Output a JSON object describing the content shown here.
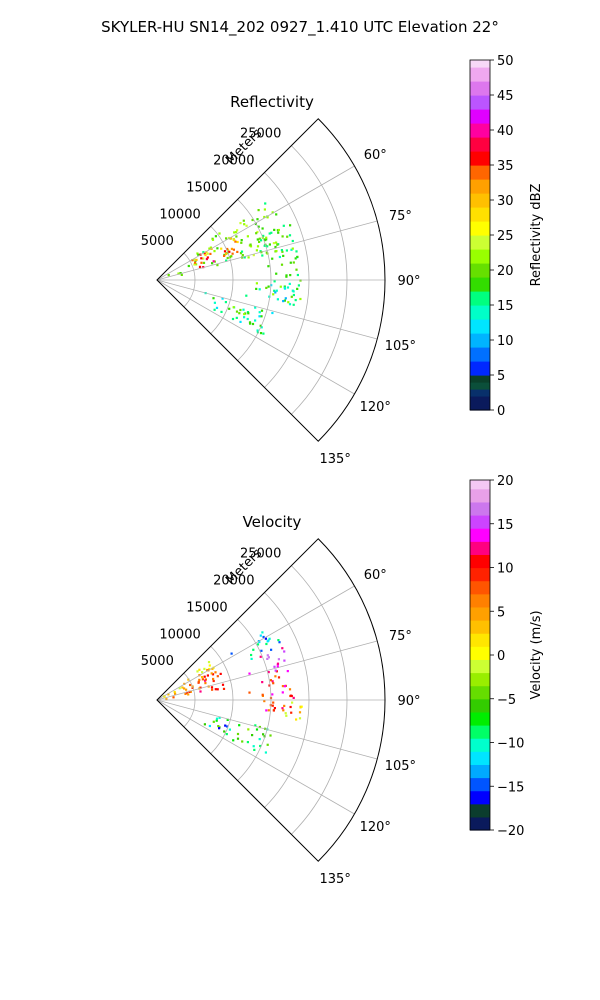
{
  "suptitle": "SKYLER-HU  SN14_202  0927_1.410 UTC Elevation 22°",
  "chart_data": [
    {
      "type": "heatmap",
      "projection": "polar-sector",
      "title": "Reflectivity",
      "radial_label": "Meters",
      "r_ticks": [
        "5000",
        "10000",
        "15000",
        "20000",
        "25000"
      ],
      "r_tick_values": [
        5000,
        10000,
        15000,
        20000,
        25000
      ],
      "theta_ticks": [
        "60°",
        "75°",
        "90°",
        "105°",
        "120°",
        "135°"
      ],
      "theta_tick_values": [
        60,
        75,
        90,
        105,
        120,
        135
      ],
      "theta_range": [
        45,
        135
      ],
      "r_range": [
        0,
        30000
      ],
      "grid": true,
      "colorbar": {
        "label": "Reflectivity dBZ",
        "range": [
          0,
          50
        ],
        "ticks": [
          "0",
          "5",
          "10",
          "15",
          "20",
          "25",
          "30",
          "35",
          "40",
          "45",
          "50"
        ],
        "tick_values": [
          0,
          5,
          10,
          15,
          20,
          25,
          30,
          35,
          40,
          45,
          50
        ],
        "placement": "right"
      },
      "echo_regions": [
        {
          "theta": [
            52,
            76
          ],
          "r": [
            0,
            18000
          ],
          "value": 20
        },
        {
          "theta": [
            58,
            70
          ],
          "r": [
            4000,
            12000
          ],
          "value": 32
        },
        {
          "theta": [
            62,
            74
          ],
          "r": [
            5500,
            8000
          ],
          "value": 38
        },
        {
          "theta": [
            66,
            100
          ],
          "r": [
            12000,
            19000
          ],
          "value": 18
        },
        {
          "theta": [
            92,
            100
          ],
          "r": [
            11000,
            18000
          ],
          "value": 12
        },
        {
          "theta": [
            104,
            118
          ],
          "r": [
            6000,
            16000
          ],
          "value": 14
        },
        {
          "theta": [
            108,
            114
          ],
          "r": [
            8000,
            13000
          ],
          "value": 22
        }
      ]
    },
    {
      "type": "heatmap",
      "projection": "polar-sector",
      "title": "Velocity",
      "radial_label": "Meters",
      "r_ticks": [
        "5000",
        "10000",
        "15000",
        "20000",
        "25000"
      ],
      "r_tick_values": [
        5000,
        10000,
        15000,
        20000,
        25000
      ],
      "theta_ticks": [
        "60°",
        "75°",
        "90°",
        "105°",
        "120°",
        "135°"
      ],
      "theta_tick_values": [
        60,
        75,
        90,
        105,
        120,
        135
      ],
      "theta_range": [
        45,
        135
      ],
      "r_range": [
        0,
        30000
      ],
      "grid": true,
      "colorbar": {
        "label": "Velocity (m/s)",
        "range": [
          -20,
          20
        ],
        "ticks": [
          "−20",
          "−15",
          "−10",
          "−5",
          "0",
          "5",
          "10",
          "15",
          "20"
        ],
        "tick_values": [
          -20,
          -15,
          -10,
          -5,
          0,
          5,
          10,
          15,
          20
        ],
        "placement": "right"
      },
      "echo_regions": [
        {
          "theta": [
            52,
            62
          ],
          "r": [
            0,
            9000
          ],
          "value": 3
        },
        {
          "theta": [
            62,
            80
          ],
          "r": [
            0,
            9000
          ],
          "value": 8
        },
        {
          "theta": [
            56,
            66
          ],
          "r": [
            10000,
            18000
          ],
          "value": -12
        },
        {
          "theta": [
            66,
            78
          ],
          "r": [
            12000,
            18000
          ],
          "value": 14
        },
        {
          "theta": [
            78,
            96
          ],
          "r": [
            10000,
            18000
          ],
          "value": 10
        },
        {
          "theta": [
            90,
            98
          ],
          "r": [
            14000,
            19000
          ],
          "value": 2
        },
        {
          "theta": [
            104,
            118
          ],
          "r": [
            6000,
            16000
          ],
          "value": -7
        },
        {
          "theta": [
            110,
            116
          ],
          "r": [
            7000,
            10000
          ],
          "value": -12
        }
      ]
    }
  ]
}
